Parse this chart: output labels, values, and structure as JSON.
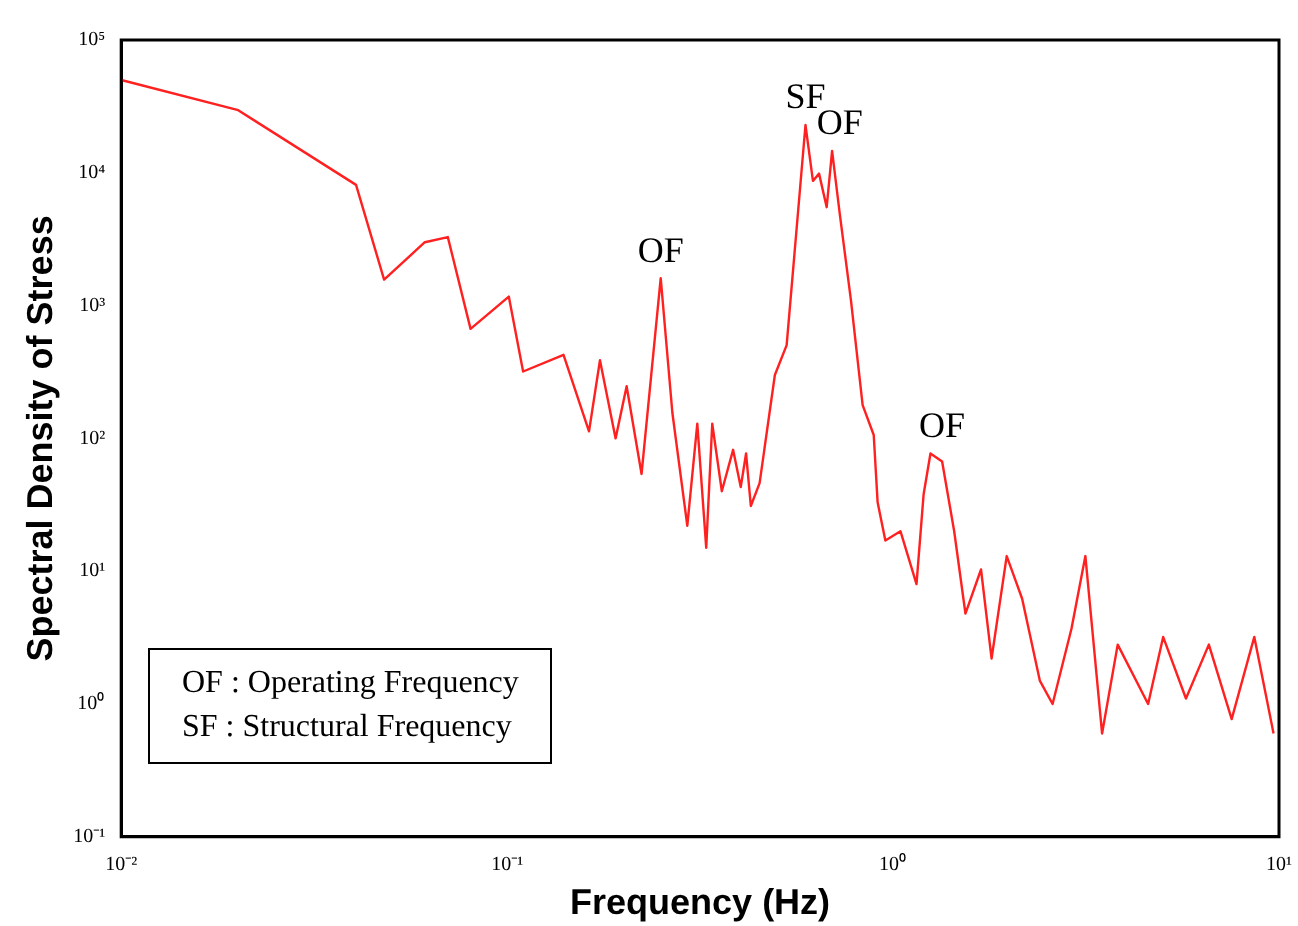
{
  "chart_data": {
    "type": "line",
    "xlabel": "Frequency (Hz)",
    "ylabel": "Spectral Density of Stress",
    "log": "xy",
    "grid": false,
    "legend": false,
    "marker": "none",
    "line_style": "solid",
    "xlim": [
      0.01,
      10
    ],
    "xticks": [
      {
        "value": 0.01,
        "label": "10⁻²"
      },
      {
        "value": 0.1,
        "label": "10⁻¹"
      },
      {
        "value": 1,
        "label": "10⁰"
      },
      {
        "value": 10,
        "label": "10¹"
      }
    ],
    "ylim": [
      0.1,
      100000
    ],
    "yticks": [
      {
        "value": 0.1,
        "label": "10⁻¹"
      },
      {
        "value": 1,
        "label": "10⁰"
      },
      {
        "value": 10,
        "label": "10¹"
      },
      {
        "value": 100,
        "label": "10²"
      },
      {
        "value": 1000,
        "label": "10³"
      },
      {
        "value": 10000,
        "label": "10⁴"
      },
      {
        "value": 100000,
        "label": "10⁵"
      }
    ],
    "x": [
      0.01,
      0.0201,
      0.0406,
      0.048,
      0.0612,
      0.0702,
      0.0804,
      0.101,
      0.11,
      0.14,
      0.163,
      0.174,
      0.191,
      0.204,
      0.223,
      0.25,
      0.268,
      0.293,
      0.311,
      0.328,
      0.34,
      0.36,
      0.385,
      0.403,
      0.416,
      0.428,
      0.451,
      0.494,
      0.53,
      0.593,
      0.62,
      0.643,
      0.673,
      0.695,
      0.728,
      0.778,
      0.834,
      0.891,
      0.912,
      0.955,
      1.045,
      1.15,
      1.2,
      1.25,
      1.34,
      1.44,
      1.54,
      1.69,
      1.8,
      1.97,
      2.16,
      2.4,
      2.59,
      2.9,
      3.15,
      3.48,
      3.82,
      4.58,
      5.01,
      5.74,
      6.58,
      7.54,
      8.63,
      9.68
    ],
    "series": [
      {
        "color": "#ff2020",
        "values": [
          50000,
          29600,
          8110,
          1570,
          3000,
          3280,
          668,
          1170,
          319,
          426,
          113,
          388,
          100,
          247,
          54,
          1610,
          156,
          22,
          129,
          15,
          129,
          40,
          82,
          43,
          77,
          31,
          46,
          300,
          504,
          22900,
          8690,
          9860,
          5510,
          14600,
          4850,
          1090,
          178,
          106,
          33,
          17,
          20,
          8.0,
          38,
          77,
          67,
          20,
          4.8,
          10.3,
          2.2,
          13,
          6.2,
          1.5,
          1.0,
          3.7,
          13,
          0.6,
          2.8,
          1.0,
          3.2,
          1.1,
          2.8,
          0.77,
          3.2,
          0.6
        ]
      }
    ],
    "annotations": [
      {
        "text": "OF",
        "x": 0.25,
        "y": 1610
      },
      {
        "text": "SF",
        "x": 0.593,
        "y": 22900
      },
      {
        "text": "OF",
        "x": 0.728,
        "y": 14600
      },
      {
        "text": "OF",
        "x": 1.34,
        "y": 77
      },
      "OF : Operating Frequency",
      "SF : Structural Frequency"
    ]
  }
}
